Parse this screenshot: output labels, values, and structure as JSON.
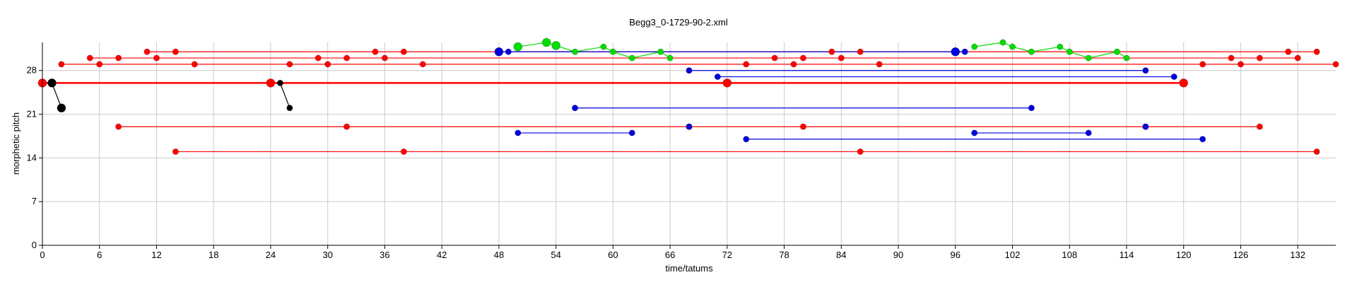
{
  "chart_data": {
    "type": "scatter",
    "title": "Begg3_0-1729-90-2.xml",
    "xlabel": "time/tatums",
    "ylabel": "morphetic pitch",
    "xlim": [
      0,
      136
    ],
    "ylim": [
      0,
      32.5
    ],
    "xticks": [
      0,
      6,
      12,
      18,
      24,
      30,
      36,
      42,
      48,
      54,
      60,
      66,
      72,
      78,
      84,
      90,
      96,
      102,
      108,
      114,
      120,
      126,
      132
    ],
    "yticks": [
      0,
      7,
      14,
      21,
      28
    ],
    "grid": true,
    "colors": {
      "red": "#ff0000",
      "blue": "#0000dd",
      "green": "#00dd00",
      "black": "#000000",
      "grid": "#cccccc"
    },
    "series": [
      {
        "color": "#ff0000",
        "width": 2.5,
        "points": [
          [
            0,
            26
          ],
          [
            24,
            26
          ],
          [
            72,
            26
          ],
          [
            120,
            26
          ]
        ],
        "big": true
      },
      {
        "color": "#ff0000",
        "width": 1.2,
        "points": [
          [
            2,
            29
          ],
          [
            6,
            29
          ],
          [
            16,
            29
          ],
          [
            26,
            29
          ],
          [
            30,
            29
          ],
          [
            40,
            29
          ],
          [
            74,
            29
          ],
          [
            79,
            29
          ],
          [
            88,
            29
          ],
          [
            122,
            29
          ],
          [
            126,
            29
          ],
          [
            136,
            29
          ]
        ]
      },
      {
        "color": "#ff0000",
        "width": 1.2,
        "points": [
          [
            5,
            30
          ],
          [
            8,
            30
          ],
          [
            12,
            30
          ],
          [
            29,
            30
          ],
          [
            32,
            30
          ],
          [
            36,
            30
          ],
          [
            77,
            30
          ],
          [
            80,
            30
          ],
          [
            84,
            30
          ],
          [
            125,
            30
          ],
          [
            128,
            30
          ],
          [
            132,
            30
          ]
        ]
      },
      {
        "color": "#ff0000",
        "width": 1.2,
        "points": [
          [
            11,
            31
          ],
          [
            14,
            31
          ],
          [
            35,
            31
          ],
          [
            38,
            31
          ],
          [
            83,
            31
          ],
          [
            86,
            31
          ],
          [
            131,
            31
          ],
          [
            134,
            31
          ]
        ]
      },
      {
        "color": "#ff0000",
        "width": 1.2,
        "points": [
          [
            8,
            19
          ],
          [
            32,
            19
          ],
          [
            68,
            19
          ],
          [
            80,
            19
          ],
          [
            116,
            19
          ],
          [
            128,
            19
          ]
        ]
      },
      {
        "color": "#ff0000",
        "width": 1.2,
        "points": [
          [
            14,
            15
          ],
          [
            38,
            15
          ],
          [
            86,
            15
          ],
          [
            134,
            15
          ]
        ]
      },
      {
        "color": "#0000dd",
        "width": 1.2,
        "points": [
          [
            48,
            31
          ],
          [
            49,
            31
          ],
          [
            96,
            31
          ],
          [
            97,
            31
          ]
        ],
        "bigIndex": [
          0,
          2
        ]
      },
      {
        "color": "#0000dd",
        "width": 1.2,
        "points": [
          [
            68,
            28
          ],
          [
            116,
            28
          ]
        ]
      },
      {
        "color": "#0000dd",
        "width": 1.2,
        "points": [
          [
            71,
            27
          ],
          [
            119,
            27
          ]
        ]
      },
      {
        "color": "#0000dd",
        "width": 1.2,
        "points": [
          [
            56,
            22
          ],
          [
            104,
            22
          ]
        ]
      },
      {
        "color": "#0000dd",
        "width": 1.2,
        "points": [
          [
            50,
            18
          ],
          [
            62,
            18
          ],
          [
            68,
            19
          ],
          [
            98,
            18
          ],
          [
            110,
            18
          ],
          [
            116,
            19
          ]
        ],
        "segments": [
          [
            0,
            1
          ],
          [
            3,
            4
          ]
        ]
      },
      {
        "color": "#0000dd",
        "width": 1.2,
        "points": [
          [
            74,
            17
          ],
          [
            122,
            17
          ]
        ]
      },
      {
        "color": "#00dd00",
        "width": 1.2,
        "points": [
          [
            50,
            31.8
          ],
          [
            53,
            32.5
          ],
          [
            54,
            32
          ],
          [
            56,
            31
          ],
          [
            59,
            31.8
          ],
          [
            60,
            31
          ],
          [
            62,
            30
          ],
          [
            65,
            31
          ],
          [
            66,
            30
          ]
        ],
        "bigIndex": [
          0,
          1,
          2
        ]
      },
      {
        "color": "#00dd00",
        "width": 1.2,
        "points": [
          [
            98,
            31.8
          ],
          [
            101,
            32.5
          ],
          [
            102,
            31.8
          ],
          [
            104,
            31
          ],
          [
            107,
            31.8
          ],
          [
            108,
            31
          ],
          [
            110,
            30
          ],
          [
            113,
            31
          ],
          [
            114,
            30
          ]
        ]
      },
      {
        "color": "#000000",
        "width": 1.2,
        "points": [
          [
            1,
            26
          ],
          [
            2,
            22
          ]
        ],
        "big": true
      },
      {
        "color": "#000000",
        "width": 1.2,
        "points": [
          [
            25,
            26
          ],
          [
            26,
            22
          ]
        ]
      }
    ]
  }
}
